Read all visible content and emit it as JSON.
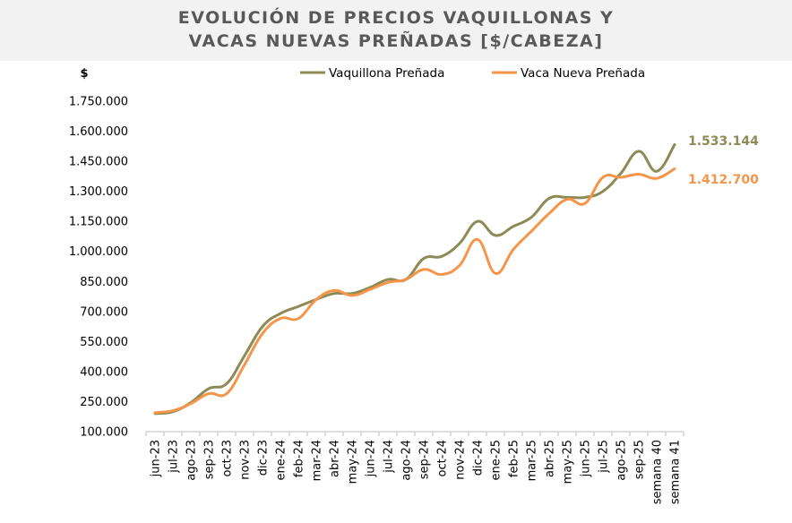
{
  "title_lines": [
    "EVOLUCIÓN DE PRECIOS VAQUILLONAS Y",
    "VACAS NUEVAS PREÑADAS [$/CABEZA]"
  ],
  "colors": {
    "vaquillona": "#8c8a55",
    "vaca": "#f5954a",
    "axis": "#bfbfbf",
    "title_bg": "#f2f2f2",
    "title_text": "#595959"
  },
  "chart_data": {
    "type": "line",
    "title": "EVOLUCIÓN DE PRECIOS VAQUILLONAS Y VACAS NUEVAS PREÑADAS [$/CABEZA]",
    "ylabel": "$",
    "xlabel": "",
    "ylim": [
      100000,
      1750000
    ],
    "yticks": [
      100000,
      250000,
      400000,
      550000,
      700000,
      850000,
      1000000,
      1150000,
      1300000,
      1450000,
      1600000,
      1750000
    ],
    "ytick_labels": [
      "100.000",
      "250.000",
      "400.000",
      "550.000",
      "700.000",
      "850.000",
      "1.000.000",
      "1.150.000",
      "1.300.000",
      "1.450.000",
      "1.600.000",
      "1.750.000"
    ],
    "categories": [
      "jun-23",
      "jul-23",
      "ago-23",
      "sep-23",
      "oct-23",
      "nov-23",
      "dic-23",
      "ene-24",
      "feb-24",
      "mar-24",
      "abr-24",
      "may-24",
      "jun-24",
      "jul-24",
      "ago-24",
      "sep-24",
      "oct-24",
      "nov-24",
      "dic-24",
      "ene-25",
      "feb-25",
      "mar-25",
      "abr-25",
      "may-25",
      "jun-25",
      "jul-25",
      "ago-25",
      "sep-25",
      "semana 40",
      "semana 41"
    ],
    "legend_position": "top-right",
    "series": [
      {
        "name": "Vaquillona Preñada",
        "end_label": "1.533.144",
        "values": [
          190000,
          200000,
          245000,
          315000,
          340000,
          480000,
          625000,
          690000,
          725000,
          760000,
          790000,
          790000,
          820000,
          860000,
          860000,
          965000,
          975000,
          1040000,
          1150000,
          1080000,
          1125000,
          1170000,
          1265000,
          1270000,
          1270000,
          1300000,
          1390000,
          1500000,
          1400000,
          1533144
        ]
      },
      {
        "name": "Vaca Nueva Preñada",
        "end_label": "1.412.700",
        "values": [
          195000,
          205000,
          240000,
          290000,
          290000,
          435000,
          590000,
          665000,
          665000,
          760000,
          805000,
          780000,
          810000,
          845000,
          860000,
          910000,
          885000,
          930000,
          1060000,
          890000,
          1010000,
          1100000,
          1190000,
          1260000,
          1240000,
          1370000,
          1370000,
          1385000,
          1365000,
          1412700
        ]
      }
    ]
  }
}
